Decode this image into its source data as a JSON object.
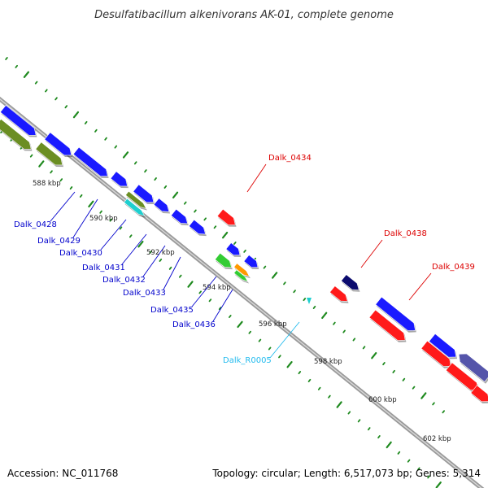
{
  "title": "Desulfatibacillum alkenivorans AK-01, complete genome",
  "footer": {
    "accession": "Accession: NC_011768",
    "summary": "Topology: circular; Length: 6,517,073 bp; Genes: 5,314"
  },
  "colors": {
    "background": "#ffffff",
    "backbone": "#9a9a9a",
    "tick": "#1f8a1f",
    "gene_blue": "#1a1aff",
    "gene_red": "#ff1a1a",
    "gene_olive": "#6b8e23",
    "gene_cyan": "#1ecfcf",
    "gene_green": "#33cc33",
    "gene_orange": "#ff9900",
    "gene_navy": "#0b0b6e",
    "gene_slate": "#5555aa",
    "label_blue": "#0000cc",
    "label_red": "#dd0000",
    "label_cyan": "#22bbee",
    "text": "#000000"
  },
  "scale_labels": [
    "588 kbp",
    "590 kbp",
    "592 kbp",
    "594 kbp",
    "596 kbp",
    "598 kbp",
    "600 kbp",
    "602 kbp"
  ],
  "gene_labels": {
    "forward_left": [
      "Dalk_0428",
      "Dalk_0429",
      "Dalk_0430",
      "Dalk_0431",
      "Dalk_0432",
      "Dalk_0433",
      "Dalk_0435",
      "Dalk_0436"
    ],
    "rna": "Dalk_R0005",
    "reverse_right": [
      "Dalk_0434",
      "Dalk_0438",
      "Dalk_0439"
    ]
  }
}
